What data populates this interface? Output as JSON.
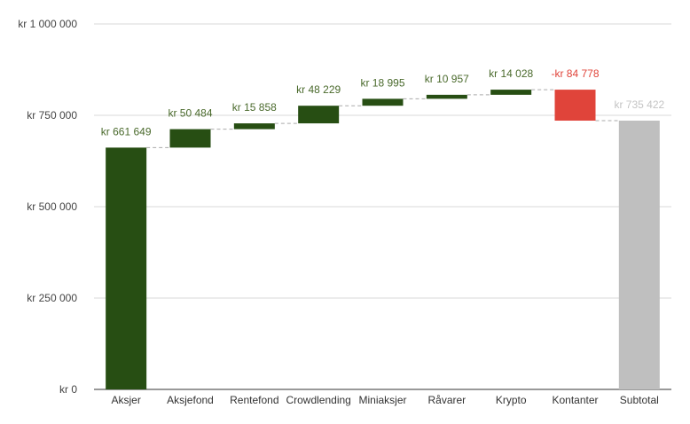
{
  "chart_data": {
    "type": "waterfall",
    "title": "",
    "xlabel": "",
    "ylabel": "",
    "ylim": [
      0,
      1000000
    ],
    "grid": true,
    "legend": "none",
    "y_ticks": [
      {
        "value": 0,
        "label": "kr  0"
      },
      {
        "value": 250000,
        "label": "kr  250 000"
      },
      {
        "value": 500000,
        "label": "kr  500 000"
      },
      {
        "value": 750000,
        "label": "kr  750 000"
      },
      {
        "value": 1000000,
        "label": "kr 1 000 000"
      }
    ],
    "categories": [
      "Aksjer",
      "Aksjefond",
      "Rentefond",
      "Crowdlending",
      "Miniaksjer",
      "Råvarer",
      "Krypto",
      "Kontanter",
      "Subtotal"
    ],
    "values": [
      661649,
      50484,
      15858,
      48229,
      18995,
      10957,
      14028,
      -84778,
      735422
    ],
    "labels": [
      "kr  661 649",
      "kr  50 484",
      "kr  15 858",
      "kr  48 229",
      "kr  18 995",
      "kr  10 957",
      "kr  14 028",
      "-kr  84 778",
      "kr  735 422"
    ],
    "subtotal_index": 8,
    "colors": {
      "increase": "#274e13",
      "decrease": "#e0443a",
      "subtotal": "#bfbfbf",
      "increase_label": "#4a6a2c",
      "decrease_label": "#e0443a",
      "subtotal_label": "#c4c4c4",
      "grid": "#d9d9d9",
      "axis": "#333333",
      "connector": "#aaaaaa"
    }
  }
}
